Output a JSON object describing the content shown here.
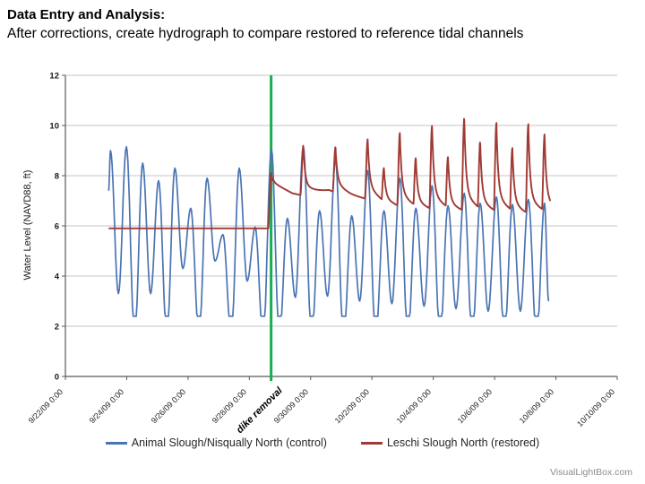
{
  "page": {
    "title_line1": "Data Entry and Analysis:",
    "title_line2": "After corrections, create hydrograph to compare restored to reference tidal channels"
  },
  "watermark": "VisualLightBox.com",
  "chart_data": {
    "type": "line",
    "title": "",
    "xlabel": "",
    "ylabel": "Water Level (NAVD88, ft)",
    "ylim": [
      0,
      12
    ],
    "yticks": [
      0,
      2,
      4,
      6,
      8,
      10,
      12
    ],
    "grid": "horizontal-major",
    "legend_position": "bottom",
    "colors": {
      "grid": "#c6c6c6",
      "axis": "#595959",
      "control_blue": "#4a74b4",
      "restored_red": "#a03a34",
      "annotation_green": "#16ae53"
    },
    "x_axis": {
      "tick_labels": [
        "9/22/09 0:00",
        "9/24/09 0:00",
        "9/26/09 0:00",
        "9/28/09 0:00",
        "9/30/09 0:00",
        "10/2/09 0:00",
        "10/4/09 0:00",
        "10/6/09 0:00",
        "10/8/09 0:00",
        "10/10/09 0:00"
      ],
      "tick_interval_days": 2,
      "range_days": [
        0,
        18
      ]
    },
    "annotation": {
      "label": "dike removal",
      "time_days": 6.71,
      "color": "#16ae53"
    },
    "series": [
      {
        "name": "Animal Slough/Nisqually North (control)",
        "role": "control",
        "color": "#4a74b4",
        "clip_floor_ft": 2.4,
        "extremes": [
          [
            1.41,
            7.4
          ],
          [
            1.47,
            9.0
          ],
          [
            1.73,
            3.3
          ],
          [
            1.99,
            9.15
          ],
          [
            2.26,
            1.5
          ],
          [
            2.52,
            8.5
          ],
          [
            2.78,
            3.3
          ],
          [
            3.04,
            7.8
          ],
          [
            3.31,
            1.5
          ],
          [
            3.57,
            8.3
          ],
          [
            3.83,
            4.3
          ],
          [
            4.09,
            6.7
          ],
          [
            4.36,
            1.6
          ],
          [
            4.62,
            7.9
          ],
          [
            4.88,
            4.6
          ],
          [
            5.14,
            5.65
          ],
          [
            5.41,
            1.6
          ],
          [
            5.67,
            8.3
          ],
          [
            5.93,
            3.8
          ],
          [
            6.19,
            5.95
          ],
          [
            6.45,
            1.5
          ],
          [
            6.72,
            9.05
          ],
          [
            6.98,
            1.5
          ],
          [
            7.24,
            6.3
          ],
          [
            7.5,
            3.15
          ],
          [
            7.76,
            9.15
          ],
          [
            8.03,
            1.5
          ],
          [
            8.29,
            6.6
          ],
          [
            8.55,
            3.2
          ],
          [
            8.81,
            8.6
          ],
          [
            9.07,
            1.5
          ],
          [
            9.34,
            6.4
          ],
          [
            9.6,
            3.0
          ],
          [
            9.86,
            8.2
          ],
          [
            10.12,
            1.5
          ],
          [
            10.39,
            6.6
          ],
          [
            10.65,
            2.9
          ],
          [
            10.91,
            7.9
          ],
          [
            11.17,
            1.5
          ],
          [
            11.43,
            6.7
          ],
          [
            11.7,
            2.8
          ],
          [
            11.96,
            7.6
          ],
          [
            12.22,
            1.5
          ],
          [
            12.48,
            6.8
          ],
          [
            12.74,
            2.7
          ],
          [
            13.01,
            7.3
          ],
          [
            13.27,
            1.5
          ],
          [
            13.53,
            6.9
          ],
          [
            13.79,
            2.6
          ],
          [
            14.06,
            7.15
          ],
          [
            14.32,
            1.5
          ],
          [
            14.58,
            6.85
          ],
          [
            14.84,
            2.6
          ],
          [
            15.1,
            7.05
          ],
          [
            15.37,
            1.5
          ],
          [
            15.63,
            6.9
          ],
          [
            15.76,
            3.0
          ]
        ]
      },
      {
        "name": "Leschi Slough North (restored)",
        "role": "restored",
        "color": "#a03a34",
        "pre_removal": {
          "start_day": 1.41,
          "end_day": 6.62,
          "level_ft": 5.9
        },
        "end_day": 15.82,
        "spikes": [
          [
            6.72,
            8.1
          ],
          [
            7.76,
            9.2
          ],
          [
            8.81,
            9.15
          ],
          [
            9.86,
            9.45
          ],
          [
            10.39,
            8.3
          ],
          [
            10.91,
            9.7
          ],
          [
            11.43,
            8.7
          ],
          [
            11.96,
            10.0
          ],
          [
            12.48,
            8.75
          ],
          [
            13.01,
            10.3
          ],
          [
            13.53,
            9.35
          ],
          [
            14.06,
            10.1
          ],
          [
            14.58,
            9.1
          ],
          [
            15.1,
            10.05
          ],
          [
            15.63,
            9.65
          ]
        ],
        "floor": [
          [
            6.62,
            5.9
          ],
          [
            6.78,
            7.6
          ],
          [
            7.4,
            7.25
          ],
          [
            7.9,
            7.15
          ],
          [
            8.6,
            7.35
          ],
          [
            9.3,
            7.1
          ],
          [
            9.9,
            7.0
          ],
          [
            10.4,
            6.75
          ],
          [
            11.0,
            6.6
          ],
          [
            11.6,
            6.5
          ],
          [
            12.2,
            6.45
          ],
          [
            12.9,
            6.4
          ],
          [
            13.6,
            6.35
          ],
          [
            14.3,
            6.3
          ],
          [
            15.0,
            6.25
          ],
          [
            15.8,
            6.3
          ]
        ],
        "spike_shape": {
          "rise_days": 0.1,
          "fast_tau_days": 0.055,
          "fast_fraction": 0.72,
          "slow_tau_days": 0.45
        }
      }
    ]
  }
}
